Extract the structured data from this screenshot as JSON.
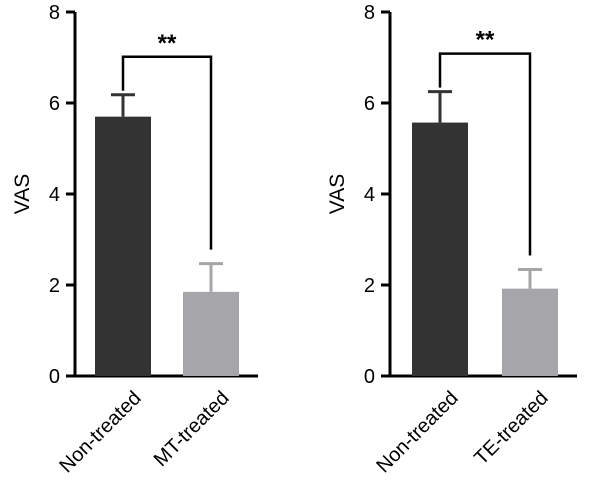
{
  "chart_data": [
    {
      "type": "bar",
      "categories": [
        "Non-treated",
        "MT-treated"
      ],
      "values": [
        5.7,
        1.85
      ],
      "error": [
        0.48,
        0.62
      ],
      "colors": [
        "#333333",
        "#a6a6aa"
      ],
      "xlabel": "",
      "ylabel": "VAS",
      "ylim": [
        0,
        8
      ],
      "yticks": [
        "0",
        "2",
        "4",
        "6",
        "8"
      ],
      "significance": "**",
      "grid": false
    },
    {
      "type": "bar",
      "categories": [
        "Non-treated",
        "TE-treated"
      ],
      "values": [
        5.57,
        1.92
      ],
      "error": [
        0.68,
        0.42
      ],
      "colors": [
        "#333333",
        "#a6a6aa"
      ],
      "xlabel": "",
      "ylabel": "VAS",
      "ylim": [
        0,
        8
      ],
      "yticks": [
        "0",
        "2",
        "4",
        "6",
        "8"
      ],
      "significance": "**",
      "grid": false
    }
  ]
}
